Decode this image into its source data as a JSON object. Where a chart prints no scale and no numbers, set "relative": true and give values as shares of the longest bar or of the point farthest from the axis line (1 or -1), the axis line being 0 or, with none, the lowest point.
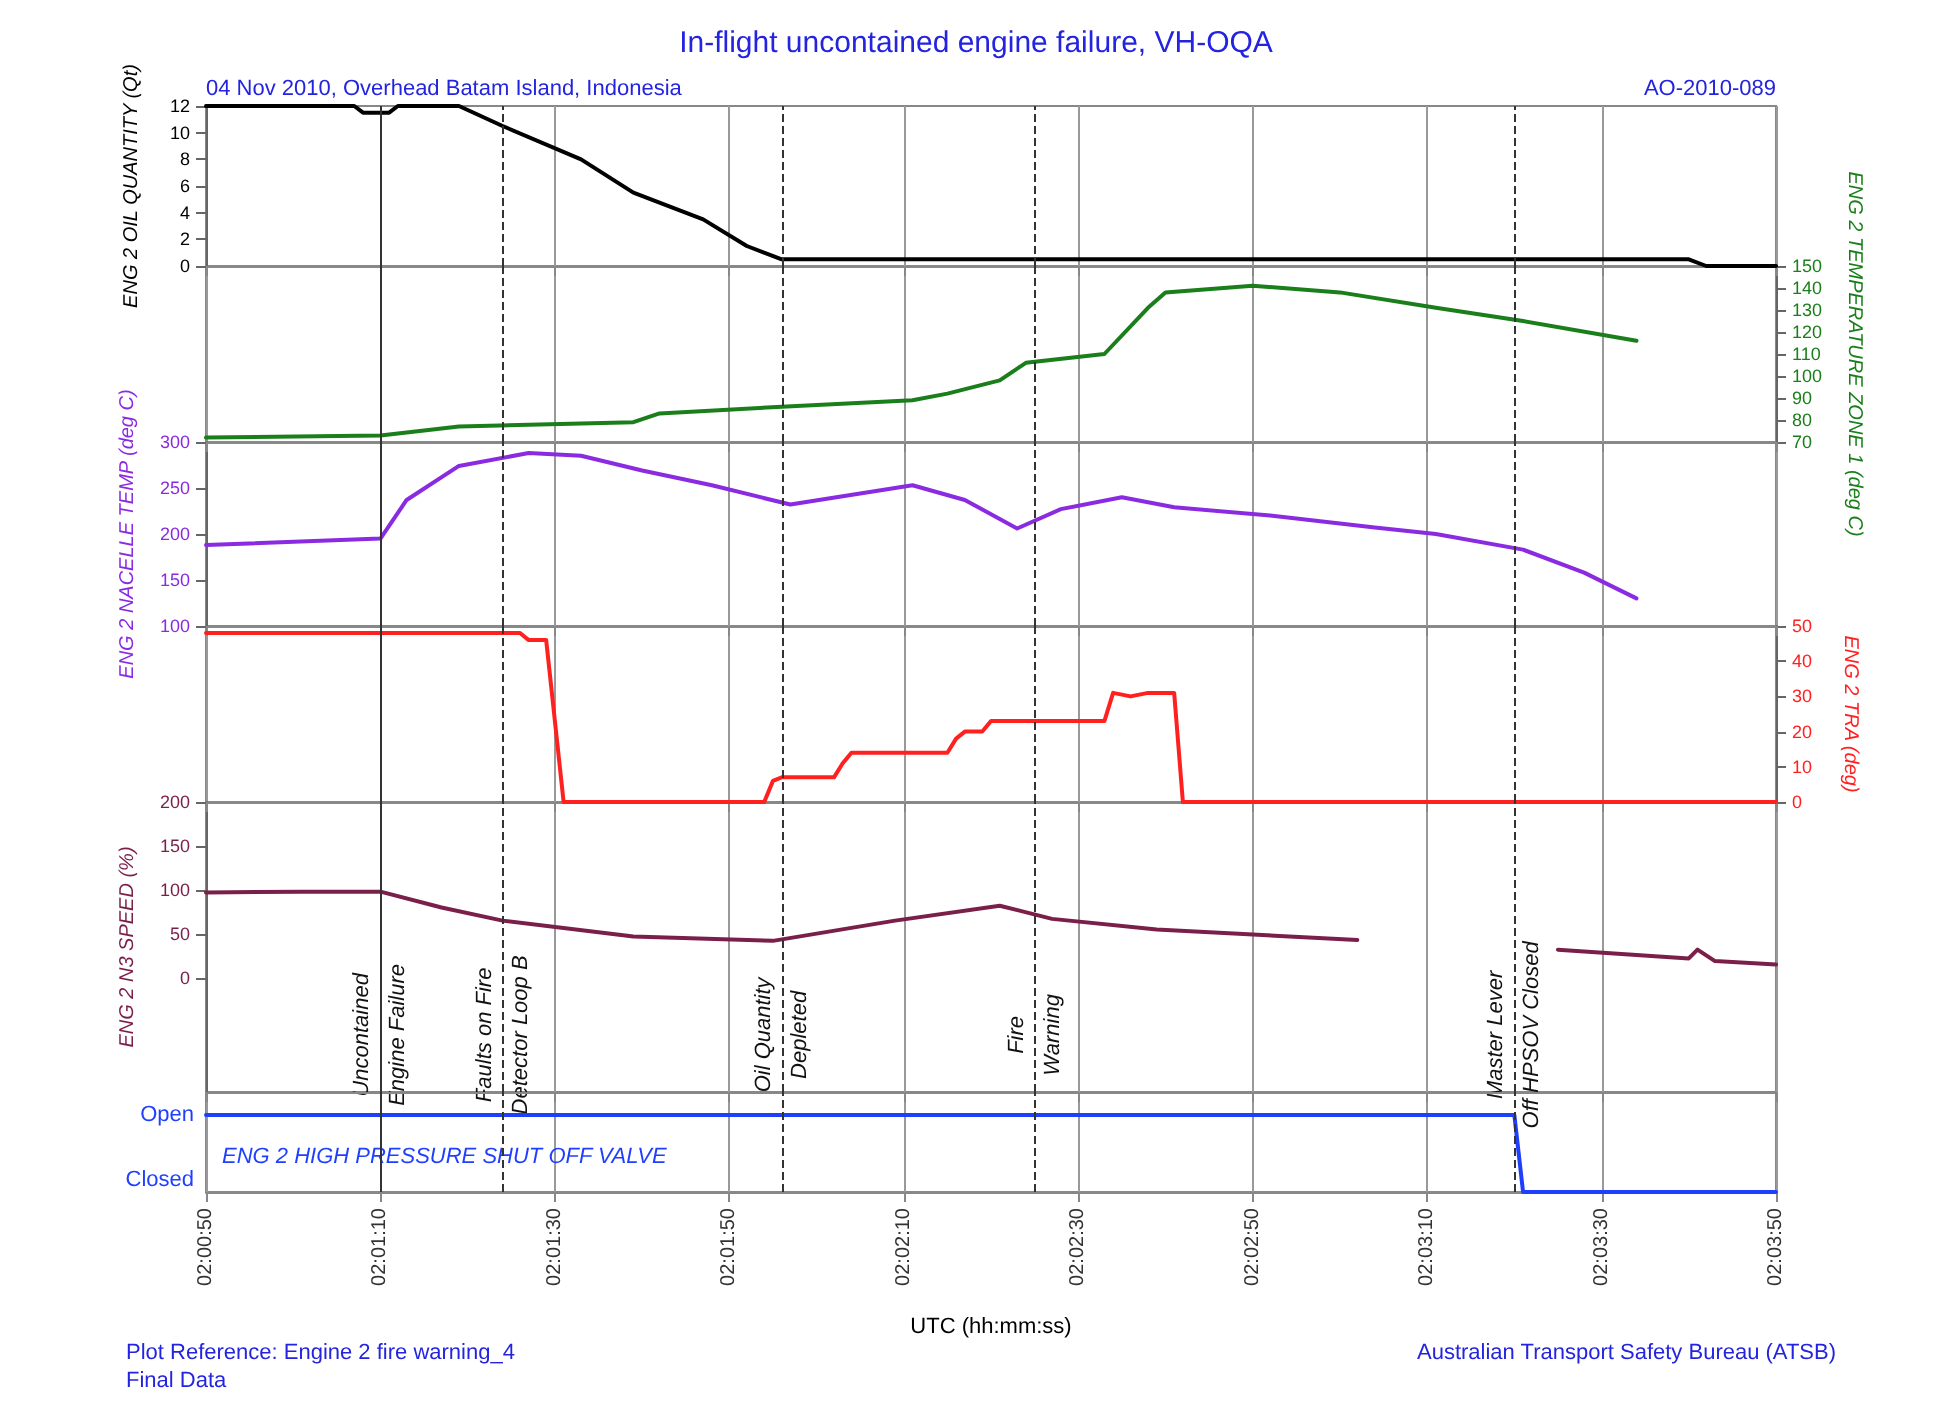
{
  "chart_data": [
    {
      "type": "line",
      "title": "In-flight uncontained engine failure, VH-OQA",
      "subtitle": "04 Nov 2010, Overhead Batam Island, Indonesia",
      "annotations": [
        "AO-2010-089"
      ],
      "ylabel": "ENG 2 OIL QUANTITY (Qt)",
      "ylim": [
        0,
        12
      ],
      "yticks": [
        0,
        2,
        4,
        6,
        8,
        10,
        12
      ],
      "xlim": [
        "2010-11-04T02:00:50",
        "2010-11-04T02:03:50"
      ],
      "xticks": [
        {
          "value": "2010-11-04T02:00:50",
          "label": null
        },
        {
          "value": "2010-11-04T02:01:10",
          "label": null
        },
        {
          "value": "2010-11-04T02:01:30",
          "label": null
        },
        {
          "value": "2010-11-04T02:01:50",
          "label": null
        },
        {
          "value": "2010-11-04T02:02:10",
          "label": null
        },
        {
          "value": "2010-11-04T02:02:30",
          "label": null
        },
        {
          "value": "2010-11-04T02:02:50",
          "label": null
        },
        {
          "value": "2010-11-04T02:03:10",
          "label": null
        },
        {
          "value": "2010-11-04T02:03:30",
          "label": null
        },
        {
          "value": "2010-11-04T02:03:50",
          "label": null
        }
      ],
      "tick_labels": "y",
      "grid": "x",
      "x": [
        "2010-11-04T02:00:50",
        "2010-11-04T02:01:07",
        "2010-11-04T02:01:08",
        "2010-11-04T02:01:11",
        "2010-11-04T02:01:12",
        "2010-11-04T02:01:19",
        "2010-11-04T02:01:24",
        "2010-11-04T02:01:33",
        "2010-11-04T02:01:39",
        "2010-11-04T02:01:47",
        "2010-11-04T02:01:52",
        "2010-11-04T02:01:56",
        "2010-11-04T02:03:40",
        "2010-11-04T02:03:42",
        "2010-11-04T02:03:50"
      ],
      "series": [
        {
          "color": "#000000",
          "values": [
            12,
            12,
            11.5,
            11.5,
            12,
            12,
            10.5,
            8,
            5.5,
            3.5,
            1.5,
            0.5,
            0.5,
            0,
            0
          ]
        }
      ],
      "ref_lines": [
        {
          "axis": "x",
          "value": "2010-11-04T02:01:10",
          "line_style": "solid"
        },
        {
          "axis": "x",
          "value": "2010-11-04T02:01:24",
          "line_style": "dashed"
        },
        {
          "axis": "x",
          "value": "2010-11-04T02:01:56",
          "line_style": "dashed"
        },
        {
          "axis": "x",
          "value": "2010-11-04T02:02:25",
          "line_style": "dashed"
        },
        {
          "axis": "x",
          "value": "2010-11-04T02:03:20",
          "line_style": "dashed"
        }
      ]
    },
    {
      "type": "line",
      "y2label": "ENG 2 TEMPERATURE ZONE 1 (deg C)",
      "y2lim": [
        70,
        150
      ],
      "y2ticks": [
        70,
        80,
        90,
        100,
        110,
        120,
        130,
        140,
        150
      ],
      "xlim": [
        "2010-11-04T02:00:50",
        "2010-11-04T02:03:50"
      ],
      "xticks": [
        {
          "value": "2010-11-04T02:00:50",
          "label": null
        },
        {
          "value": "2010-11-04T02:01:10",
          "label": null
        },
        {
          "value": "2010-11-04T02:01:30",
          "label": null
        },
        {
          "value": "2010-11-04T02:01:50",
          "label": null
        },
        {
          "value": "2010-11-04T02:02:10",
          "label": null
        },
        {
          "value": "2010-11-04T02:02:30",
          "label": null
        },
        {
          "value": "2010-11-04T02:02:50",
          "label": null
        },
        {
          "value": "2010-11-04T02:03:10",
          "label": null
        },
        {
          "value": "2010-11-04T02:03:30",
          "label": null
        },
        {
          "value": "2010-11-04T02:03:50",
          "label": null
        }
      ],
      "tick_labels": "y",
      "grid": "x",
      "x": [
        "2010-11-04T02:00:50",
        "2010-11-04T02:01:10",
        "2010-11-04T02:01:19",
        "2010-11-04T02:01:39",
        "2010-11-04T02:01:42",
        "2010-11-04T02:01:56",
        "2010-11-04T02:02:11",
        "2010-11-04T02:02:15",
        "2010-11-04T02:02:21",
        "2010-11-04T02:02:24",
        "2010-11-04T02:02:33",
        "2010-11-04T02:02:38",
        "2010-11-04T02:02:40",
        "2010-11-04T02:02:50",
        "2010-11-04T02:03:00",
        "2010-11-04T02:03:11",
        "2010-11-04T02:03:21",
        "2010-11-04T02:03:34"
      ],
      "series": [
        {
          "color": "#1a7f1a",
          "axis": "y2",
          "values": [
            72,
            73,
            77,
            79,
            83,
            86,
            89,
            92,
            98,
            106,
            110,
            131,
            138,
            141,
            138,
            131,
            125,
            116
          ]
        }
      ],
      "ref_lines": [
        {
          "axis": "x",
          "value": "2010-11-04T02:01:10",
          "line_style": "solid"
        },
        {
          "axis": "x",
          "value": "2010-11-04T02:01:24",
          "line_style": "dashed"
        },
        {
          "axis": "x",
          "value": "2010-11-04T02:01:56",
          "line_style": "dashed"
        },
        {
          "axis": "x",
          "value": "2010-11-04T02:02:25",
          "line_style": "dashed"
        },
        {
          "axis": "x",
          "value": "2010-11-04T02:03:20",
          "line_style": "dashed"
        }
      ]
    },
    {
      "type": "line",
      "ylabel": "ENG 2 NACELLE TEMP (deg C)",
      "ylim": [
        100,
        300
      ],
      "yticks": [
        100,
        150,
        200,
        250,
        300
      ],
      "xlim": [
        "2010-11-04T02:00:50",
        "2010-11-04T02:03:50"
      ],
      "xticks": [
        {
          "value": "2010-11-04T02:00:50",
          "label": null
        },
        {
          "value": "2010-11-04T02:01:10",
          "label": null
        },
        {
          "value": "2010-11-04T02:01:30",
          "label": null
        },
        {
          "value": "2010-11-04T02:01:50",
          "label": null
        },
        {
          "value": "2010-11-04T02:02:10",
          "label": null
        },
        {
          "value": "2010-11-04T02:02:30",
          "label": null
        },
        {
          "value": "2010-11-04T02:02:50",
          "label": null
        },
        {
          "value": "2010-11-04T02:03:10",
          "label": null
        },
        {
          "value": "2010-11-04T02:03:30",
          "label": null
        },
        {
          "value": "2010-11-04T02:03:50",
          "label": null
        }
      ],
      "tick_labels": "y",
      "grid": "x",
      "x": [
        "2010-11-04T02:00:50",
        "2010-11-04T02:01:10",
        "2010-11-04T02:01:13",
        "2010-11-04T02:01:19",
        "2010-11-04T02:01:27",
        "2010-11-04T02:01:33",
        "2010-11-04T02:01:40",
        "2010-11-04T02:01:48",
        "2010-11-04T02:01:57",
        "2010-11-04T02:02:05",
        "2010-11-04T02:02:11",
        "2010-11-04T02:02:17",
        "2010-11-04T02:02:23",
        "2010-11-04T02:02:28",
        "2010-11-04T02:02:35",
        "2010-11-04T02:02:41",
        "2010-11-04T02:02:52",
        "2010-11-04T02:03:04",
        "2010-11-04T02:03:11",
        "2010-11-04T02:03:21",
        "2010-11-04T02:03:28",
        "2010-11-04T02:03:34"
      ],
      "series": [
        {
          "color": "#8a2be2",
          "values": [
            188,
            195,
            237,
            274,
            288,
            285,
            269,
            253,
            232,
            244,
            253,
            237,
            206,
            227,
            240,
            229,
            220,
            207,
            200,
            183,
            158,
            130
          ]
        }
      ],
      "ref_lines": [
        {
          "axis": "x",
          "value": "2010-11-04T02:01:10",
          "line_style": "solid"
        },
        {
          "axis": "x",
          "value": "2010-11-04T02:01:24",
          "line_style": "dashed"
        },
        {
          "axis": "x",
          "value": "2010-11-04T02:01:56",
          "line_style": "dashed"
        },
        {
          "axis": "x",
          "value": "2010-11-04T02:02:25",
          "line_style": "dashed"
        },
        {
          "axis": "x",
          "value": "2010-11-04T02:03:20",
          "line_style": "dashed"
        }
      ]
    },
    {
      "type": "line",
      "y2label": "ENG 2 TRA (deg)",
      "y2lim": [
        0,
        50
      ],
      "y2ticks": [
        0,
        10,
        20,
        30,
        40,
        50
      ],
      "xlim": [
        "2010-11-04T02:00:50",
        "2010-11-04T02:03:50"
      ],
      "xticks": [
        {
          "value": "2010-11-04T02:00:50",
          "label": null
        },
        {
          "value": "2010-11-04T02:01:10",
          "label": null
        },
        {
          "value": "2010-11-04T02:01:30",
          "label": null
        },
        {
          "value": "2010-11-04T02:01:50",
          "label": null
        },
        {
          "value": "2010-11-04T02:02:10",
          "label": null
        },
        {
          "value": "2010-11-04T02:02:30",
          "label": null
        },
        {
          "value": "2010-11-04T02:02:50",
          "label": null
        },
        {
          "value": "2010-11-04T02:03:10",
          "label": null
        },
        {
          "value": "2010-11-04T02:03:30",
          "label": null
        },
        {
          "value": "2010-11-04T02:03:50",
          "label": null
        }
      ],
      "tick_labels": "y",
      "grid": "x",
      "x": [
        "2010-11-04T02:00:50",
        "2010-11-04T02:01:26",
        "2010-11-04T02:01:27",
        "2010-11-04T02:01:29",
        "2010-11-04T02:01:31",
        "2010-11-04T02:01:54",
        "2010-11-04T02:01:55",
        "2010-11-04T02:01:56",
        "2010-11-04T02:02:02",
        "2010-11-04T02:02:03",
        "2010-11-04T02:02:04",
        "2010-11-04T02:02:15",
        "2010-11-04T02:02:16",
        "2010-11-04T02:02:17",
        "2010-11-04T02:02:19",
        "2010-11-04T02:02:20",
        "2010-11-04T02:02:33",
        "2010-11-04T02:02:34",
        "2010-11-04T02:02:36",
        "2010-11-04T02:02:38",
        "2010-11-04T02:02:41",
        "2010-11-04T02:02:42",
        "2010-11-04T02:03:50"
      ],
      "series": [
        {
          "color": "#ff2020",
          "axis": "y2",
          "values": [
            48,
            48,
            46,
            46,
            0,
            0,
            6,
            7,
            7,
            11,
            14,
            14,
            18,
            20,
            20,
            23,
            23,
            31,
            30,
            31,
            31,
            0,
            0
          ]
        }
      ],
      "ref_lines": [
        {
          "axis": "x",
          "value": "2010-11-04T02:01:10",
          "line_style": "solid"
        },
        {
          "axis": "x",
          "value": "2010-11-04T02:01:24",
          "line_style": "dashed"
        },
        {
          "axis": "x",
          "value": "2010-11-04T02:01:56",
          "line_style": "dashed"
        },
        {
          "axis": "x",
          "value": "2010-11-04T02:02:25",
          "line_style": "dashed"
        },
        {
          "axis": "x",
          "value": "2010-11-04T02:03:20",
          "line_style": "dashed"
        }
      ]
    },
    {
      "type": "line",
      "ylabel": "ENG 2 N3 SPEED (%)",
      "ylim": [
        -130,
        200
      ],
      "yticks": [
        0,
        50,
        100,
        150,
        200
      ],
      "xlim": [
        "2010-11-04T02:00:50",
        "2010-11-04T02:03:50"
      ],
      "xticks": [
        {
          "value": "2010-11-04T02:00:50",
          "label": null
        },
        {
          "value": "2010-11-04T02:01:10",
          "label": null
        },
        {
          "value": "2010-11-04T02:01:30",
          "label": null
        },
        {
          "value": "2010-11-04T02:01:50",
          "label": null
        },
        {
          "value": "2010-11-04T02:02:10",
          "label": null
        },
        {
          "value": "2010-11-04T02:02:30",
          "label": null
        },
        {
          "value": "2010-11-04T02:02:50",
          "label": null
        },
        {
          "value": "2010-11-04T02:03:10",
          "label": null
        },
        {
          "value": "2010-11-04T02:03:30",
          "label": null
        },
        {
          "value": "2010-11-04T02:03:50",
          "label": null
        }
      ],
      "tick_labels": "y",
      "grid": "x",
      "x": [
        "2010-11-04T02:00:50",
        "2010-11-04T02:01:01",
        "2010-11-04T02:01:10",
        "2010-11-04T02:01:17",
        "2010-11-04T02:01:24",
        "2010-11-04T02:01:39",
        "2010-11-04T02:01:55",
        "2010-11-04T02:02:09",
        "2010-11-04T02:02:21",
        "2010-11-04T02:02:27",
        "2010-11-04T02:02:39",
        "2010-11-04T02:03:02",
        "2010-11-04T02:03:10",
        "2010-11-04T02:03:25",
        "2010-11-04T02:03:40",
        "2010-11-04T02:03:41",
        "2010-11-04T02:03:43",
        "2010-11-04T02:03:50"
      ],
      "series": [
        {
          "color": "#7a1f4a",
          "values": [
            97,
            98,
            98,
            80,
            65,
            47,
            42,
            65,
            82,
            67,
            55,
            43,
            null,
            32,
            22,
            32,
            19,
            15
          ]
        }
      ],
      "ref_lines": [
        {
          "axis": "x",
          "value": "2010-11-04T02:01:10",
          "line_style": "solid",
          "label": "Uncontained Engine Failure"
        },
        {
          "axis": "x",
          "value": "2010-11-04T02:01:24",
          "line_style": "dashed",
          "label": "Faults on Fire Detector Loop B"
        },
        {
          "axis": "x",
          "value": "2010-11-04T02:01:56",
          "line_style": "dashed",
          "label": "Oil Quantity Depleted"
        },
        {
          "axis": "x",
          "value": "2010-11-04T02:02:25",
          "line_style": "dashed",
          "label": "Fire Warning"
        },
        {
          "axis": "x",
          "value": "2010-11-04T02:03:20",
          "line_style": "dashed",
          "label": "Master Lever Off HPSOV Closed"
        }
      ]
    },
    {
      "type": "line",
      "relative": true,
      "xlabel": "UTC (hh:mm:ss)",
      "annotations": [
        "Open",
        "Closed",
        "Plot Reference: Engine 2 fire warning_4",
        "Final Data",
        "Australian Transport Safety Bureau (ATSB)"
      ],
      "xlim": [
        "2010-11-04T02:00:50",
        "2010-11-04T02:03:50"
      ],
      "xticks": [
        {
          "value": "2010-11-04T02:00:50",
          "label": "02:00:50"
        },
        {
          "value": "2010-11-04T02:01:10",
          "label": "02:01:10"
        },
        {
          "value": "2010-11-04T02:01:30",
          "label": "02:01:30"
        },
        {
          "value": "2010-11-04T02:01:50",
          "label": "02:01:50"
        },
        {
          "value": "2010-11-04T02:02:10",
          "label": "02:02:10"
        },
        {
          "value": "2010-11-04T02:02:30",
          "label": "02:02:30"
        },
        {
          "value": "2010-11-04T02:02:50",
          "label": "02:02:50"
        },
        {
          "value": "2010-11-04T02:03:10",
          "label": "02:03:10"
        },
        {
          "value": "2010-11-04T02:03:30",
          "label": "02:03:30"
        },
        {
          "value": "2010-11-04T02:03:50",
          "label": "02:03:50"
        }
      ],
      "grid": "x",
      "x": [
        "2010-11-04T02:00:50",
        "2010-11-04T02:03:20",
        "2010-11-04T02:03:21",
        "2010-11-04T02:03:50"
      ],
      "series": [
        {
          "name": "ENG 2 HIGH PRESSURE SHUT OFF VALVE",
          "color": "#1f3fff",
          "values": [
            1,
            1,
            0,
            0
          ]
        }
      ],
      "ref_lines": [
        {
          "axis": "x",
          "value": "2010-11-04T02:01:10",
          "line_style": "solid"
        },
        {
          "axis": "x",
          "value": "2010-11-04T02:01:24",
          "line_style": "dashed"
        },
        {
          "axis": "x",
          "value": "2010-11-04T02:01:56",
          "line_style": "dashed"
        },
        {
          "axis": "x",
          "value": "2010-11-04T02:02:25",
          "line_style": "dashed"
        },
        {
          "axis": "x",
          "value": "2010-11-04T02:03:20",
          "line_style": "dashed"
        }
      ]
    }
  ]
}
